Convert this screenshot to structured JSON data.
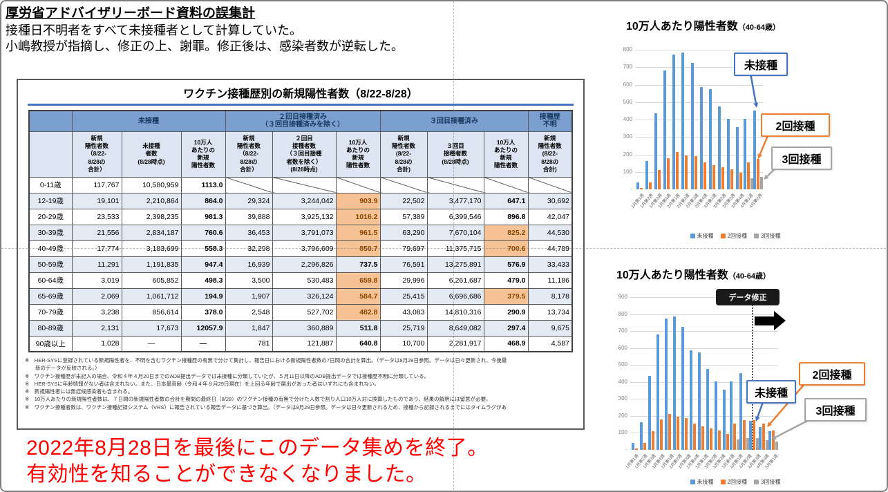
{
  "page": {
    "header_title": "厚労省アドバイザリーボード資料の誤集計",
    "header_line1": "接種日不明者をすべて未接種者として計算していた。",
    "header_line2": "小嶋教授が指摘し、修正の上、謝罪。修正後は、感染者数が逆転した。",
    "bottom_message_line1": "2022年8月28日を最後にこのデータ集めを終了。",
    "bottom_message_line2": "有効性を知ることができなくなりました。"
  },
  "table": {
    "title": "ワクチン接種歴別の新規陽性者数（8/22-8/28）",
    "groups": [
      {
        "label": "",
        "span": 1
      },
      {
        "label": "未接種",
        "span": 3
      },
      {
        "label": "２回目接種済み\n（３回目接種済みを除く）",
        "span": 3
      },
      {
        "label": "３回目接種済み",
        "span": 3
      },
      {
        "label": "接種歴\n不明",
        "span": 1
      }
    ],
    "subheaders": [
      "",
      "新規\n陽性者数\n（8/22-\n8/28の\n合計）",
      "未接種\n者数\n(8/28時点)",
      "10万人\nあたりの\n新規\n陽性者数",
      "新規\n陽性者数\n（8/22-\n8/28の\n合計）",
      "２回目\n接種者数\n（３回目接種\n者数を除く）\n(8/28時点)",
      "10万人\nあたりの\n新規\n陽性者数",
      "新規\n陽性者数\n(8/22-\n8/28の\n合計)",
      "３回目\n接種者数\n(8/28時点)",
      "10万人\nあたりの\n新規\n陽性者数",
      "新規\n陽性者数\n(8/22-\n8/28の\n合計)"
    ],
    "rows": [
      {
        "age": "0-11歳",
        "cells": [
          "117,767",
          "10,580,959",
          "1113.0",
          null,
          null,
          null,
          null,
          null,
          null,
          null
        ]
      },
      {
        "age": "12-19歳",
        "cells": [
          "19,101",
          "2,210,864",
          "864.0",
          "29,324",
          "3,244,042",
          "903.9",
          "22,502",
          "3,477,170",
          "647.1",
          "30,692"
        ]
      },
      {
        "age": "20-29歳",
        "cells": [
          "23,533",
          "2,398,235",
          "981.3",
          "39,888",
          "3,925,132",
          "1016.2",
          "57,389",
          "6,399,546",
          "896.8",
          "42,047"
        ]
      },
      {
        "age": "30-39歳",
        "cells": [
          "21,556",
          "2,834,187",
          "760.6",
          "36,453",
          "3,791,073",
          "961.5",
          "63,290",
          "7,670,104",
          "825.2",
          "44,530"
        ]
      },
      {
        "age": "40-49歳",
        "cells": [
          "17,774",
          "3,183,699",
          "558.3",
          "32,298",
          "3,796,609",
          "850.7",
          "79,697",
          "11,375,715",
          "700.6",
          "44,789"
        ]
      },
      {
        "age": "50-59歳",
        "cells": [
          "11,291",
          "1,191,835",
          "947.4",
          "16,939",
          "2,296,826",
          "737.5",
          "76,591",
          "13,275,891",
          "576.9",
          "33,433"
        ]
      },
      {
        "age": "60-64歳",
        "cells": [
          "3,019",
          "605,852",
          "498.3",
          "3,500",
          "530,483",
          "659.8",
          "29,996",
          "6,261,687",
          "479.0",
          "11,186"
        ]
      },
      {
        "age": "65-69歳",
        "cells": [
          "2,069",
          "1,061,712",
          "194.9",
          "1,907",
          "326,124",
          "584.7",
          "25,415",
          "6,696,686",
          "379.5",
          "8,178"
        ]
      },
      {
        "age": "70-79歳",
        "cells": [
          "3,238",
          "856,614",
          "378.0",
          "2,548",
          "527,702",
          "482.8",
          "43,083",
          "14,810,316",
          "290.9",
          "13,734"
        ]
      },
      {
        "age": "80-89歳",
        "cells": [
          "2,131",
          "17,673",
          "12057.9",
          "1,847",
          "360,889",
          "511.8",
          "25,719",
          "8,649,082",
          "297.4",
          "9,675"
        ]
      },
      {
        "age": "90歳以上",
        "cells": [
          "1,028",
          "—",
          "—",
          "781",
          "121,887",
          "640.8",
          "10,700",
          "2,281,917",
          "468.9",
          "4,587"
        ]
      }
    ],
    "bold_cols": [
      2,
      5,
      8
    ],
    "highlights": [
      [
        1,
        5
      ],
      [
        2,
        5
      ],
      [
        3,
        5
      ],
      [
        3,
        8
      ],
      [
        4,
        5
      ],
      [
        4,
        8
      ],
      [
        6,
        5
      ],
      [
        7,
        5
      ],
      [
        7,
        8
      ],
      [
        8,
        5
      ]
    ],
    "highlight_bg": "#F6C397",
    "highlight_border": "#C55A11",
    "notes": [
      "※　HER-SYSに登録されている新規陽性者を、不明を含むワクチン接種歴の有無で分けて集計し、報告日における新規陽性者数の7日間の合計を算出。（データは8月29日参照。データは日々更新され、今後最",
      "　　新のデータが反映される。）",
      "※　ワクチン接種歴が未記入の場合、令和４年４月20日までのADB提出データでは未接種に分類していたが、５月11日以降のADB提出データでは接種歴不明に分類している。",
      "※　HER-SYSに年齢情報がない者は含まれない。また、日本最高齢（令和４年８月29日現在）を上回る年齢で届出があった者はいずれにも含まれない。",
      "※　新規陽性者には無症候感染者も含まれる。",
      "※　10万人あたりの新規陽性者数は、７日間の新規陽性者数の合計を期間の最終日（8/28）のワクチン接種の有無で分けた人数で割り人口10万人対に換算したものであり、結果の解釈には留意が必要。",
      "※　ワクチン接種者数は、ワクチン接種記録システム（VRS）に報告されている報告データに基づき算出。（データは8月29日参照。データは日々更新されるため、接種から記録されるまでにはタイムラグがあ"
    ]
  },
  "chart_data": [
    {
      "type": "bar",
      "title": "10万人あたり陽性者数",
      "title_note": "（40-64歳）",
      "ylim": [
        0,
        800
      ],
      "ytick": 100,
      "grid": true,
      "legend_position": "bottom",
      "categories": [
        "1月第1週",
        "1月第2週",
        "1月第3週",
        "1月第4週",
        "2月第1週",
        "2月第2週",
        "2月第3週",
        "2月第4週",
        "3月第1週",
        "3月第2週",
        "3月第3週",
        "3月第4週",
        "4月第1週",
        "4月第2週"
      ],
      "series": [
        {
          "name": "未接種",
          "color": "#5B9BD5",
          "values": [
            40,
            163,
            435,
            682,
            772,
            785,
            725,
            587,
            573,
            475,
            405,
            356,
            405,
            452
          ]
        },
        {
          "name": "2回接種",
          "color": "#ED7D31",
          "values": [
            8,
            40,
            112,
            178,
            213,
            195,
            189,
            154,
            140,
            125,
            114,
            95,
            155,
            174
          ]
        },
        {
          "name": "3回接種",
          "color": "#A5A5A5",
          "values": [
            0,
            0,
            0,
            0,
            0,
            0,
            0,
            0,
            0,
            0,
            0,
            0,
            63,
            70
          ]
        }
      ],
      "callouts": [
        {
          "name": "unvaccinated-callout",
          "label": "未接種",
          "color": "#4472C4"
        },
        {
          "name": "two-dose-callout",
          "label": "2回接種",
          "color": "#ED7D31"
        },
        {
          "name": "three-dose-callout",
          "label": "3回接種",
          "color": "#A5A5A5"
        }
      ]
    },
    {
      "type": "bar",
      "title": "10万人あたり陽性者数",
      "title_note": "（40-64歳）",
      "ylim": [
        0,
        900
      ],
      "ytick": 100,
      "grid": true,
      "legend_position": "bottom",
      "categories": [
        "1月第1週",
        "1月第2週",
        "1月第3週",
        "1月第4週",
        "2月第1週",
        "2月第2週",
        "2月第3週",
        "2月第4週",
        "3月第1週",
        "3月第2週",
        "3月第3週",
        "3月第4週",
        "4月第1週",
        "4月第2週",
        "4月第3週",
        "4月第4週",
        "5月第1週"
      ],
      "series": [
        {
          "name": "未接種",
          "color": "#5B9BD5",
          "values": [
            40,
            163,
            435,
            682,
            772,
            785,
            725,
            587,
            573,
            475,
            405,
            356,
            405,
            452,
            170,
            134,
            110
          ]
        },
        {
          "name": "2回接種",
          "color": "#ED7D31",
          "values": [
            8,
            40,
            112,
            178,
            213,
            195,
            189,
            154,
            140,
            125,
            114,
            95,
            155,
            174,
            174,
            155,
            114
          ]
        },
        {
          "name": "3回接種",
          "color": "#A5A5A5",
          "values": [
            0,
            0,
            0,
            0,
            0,
            0,
            0,
            0,
            0,
            0,
            0,
            0,
            63,
            70,
            70,
            58,
            50
          ]
        }
      ],
      "annotation": {
        "label": "データ修正",
        "after_category": "4月第2週"
      },
      "callouts": [
        {
          "name": "unvaccinated-callout",
          "label": "未接種",
          "color": "#4472C4"
        },
        {
          "name": "two-dose-callout",
          "label": "2回接種",
          "color": "#ED7D31"
        },
        {
          "name": "three-dose-callout",
          "label": "3回接種",
          "color": "#A5A5A5"
        }
      ]
    }
  ]
}
